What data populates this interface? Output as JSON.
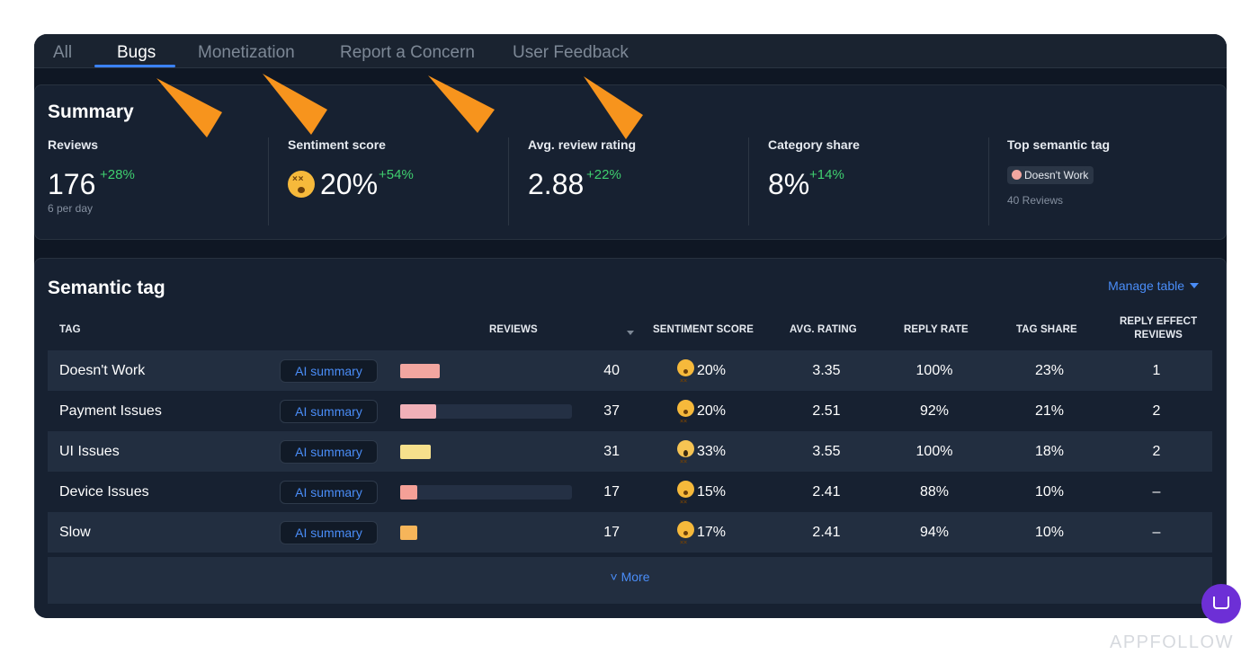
{
  "tabs": [
    {
      "label": "All",
      "active": false
    },
    {
      "label": "Bugs",
      "active": true
    },
    {
      "label": "Monetization",
      "active": false
    },
    {
      "label": "Report a Concern",
      "active": false
    },
    {
      "label": "User Feedback",
      "active": false
    }
  ],
  "summary": {
    "title": "Summary",
    "reviews": {
      "label": "Reviews",
      "value": "176",
      "delta": "+28%",
      "sub": "6 per day"
    },
    "sentiment": {
      "label": "Sentiment score",
      "value": "20%",
      "delta": "+54%",
      "icon": "dizzy-face-emoji"
    },
    "rating": {
      "label": "Avg. review rating",
      "value": "2.88",
      "delta": "+22%"
    },
    "share": {
      "label": "Category share",
      "value": "8%",
      "delta": "+14%"
    },
    "top_tag": {
      "label": "Top semantic tag",
      "tag": "Doesn't Work",
      "sub": "40 Reviews",
      "color": "#f2a6a0"
    }
  },
  "semantic": {
    "title": "Semantic tag",
    "manage_label": "Manage table",
    "headers": {
      "tag": "TAG",
      "reviews": "REVIEWS",
      "sentiment": "SENTIMENT SCORE",
      "avg_rating": "AVG. RATING",
      "reply_rate": "REPLY RATE",
      "tag_share": "TAG SHARE",
      "reply_effect_1": "REPLY EFFECT",
      "reply_effect_2": "REVIEWS"
    },
    "ai_label": "AI summary",
    "rows": [
      {
        "tag": "Doesn't Work",
        "reviews": "40",
        "bar_fraction": 0.23,
        "bar_color": "#f2a6a0",
        "emoji": "dizzy-face-emoji",
        "sentiment": "20%",
        "avg_rating": "3.35",
        "reply_rate": "100%",
        "tag_share": "23%",
        "reply_effect": "1"
      },
      {
        "tag": "Payment Issues",
        "reviews": "37",
        "bar_fraction": 0.21,
        "bar_color": "#f0b0b8",
        "emoji": "dizzy-face-emoji",
        "sentiment": "20%",
        "avg_rating": "2.51",
        "reply_rate": "92%",
        "tag_share": "21%",
        "reply_effect": "2"
      },
      {
        "tag": "UI Issues",
        "reviews": "31",
        "bar_fraction": 0.18,
        "bar_color": "#f6e08c",
        "emoji": "screaming-face-emoji",
        "sentiment": "33%",
        "avg_rating": "3.55",
        "reply_rate": "100%",
        "tag_share": "18%",
        "reply_effect": "2"
      },
      {
        "tag": "Device Issues",
        "reviews": "17",
        "bar_fraction": 0.1,
        "bar_color": "#f4a097",
        "emoji": "dizzy-face-emoji",
        "sentiment": "15%",
        "avg_rating": "2.41",
        "reply_rate": "88%",
        "tag_share": "10%",
        "reply_effect": "–"
      },
      {
        "tag": "Slow",
        "reviews": "17",
        "bar_fraction": 0.1,
        "bar_color": "#f6b55a",
        "emoji": "dizzy-face-emoji",
        "sentiment": "17%",
        "avg_rating": "2.41",
        "reply_rate": "94%",
        "tag_share": "10%",
        "reply_effect": "–"
      }
    ],
    "more_label": "˅ More"
  },
  "brand": "APPFOLLOW",
  "colors": {
    "accent": "#4a8df8",
    "positive": "#3fcf6f",
    "annotation_arrow": "#f7941d",
    "chat": "#6d2fd6"
  }
}
